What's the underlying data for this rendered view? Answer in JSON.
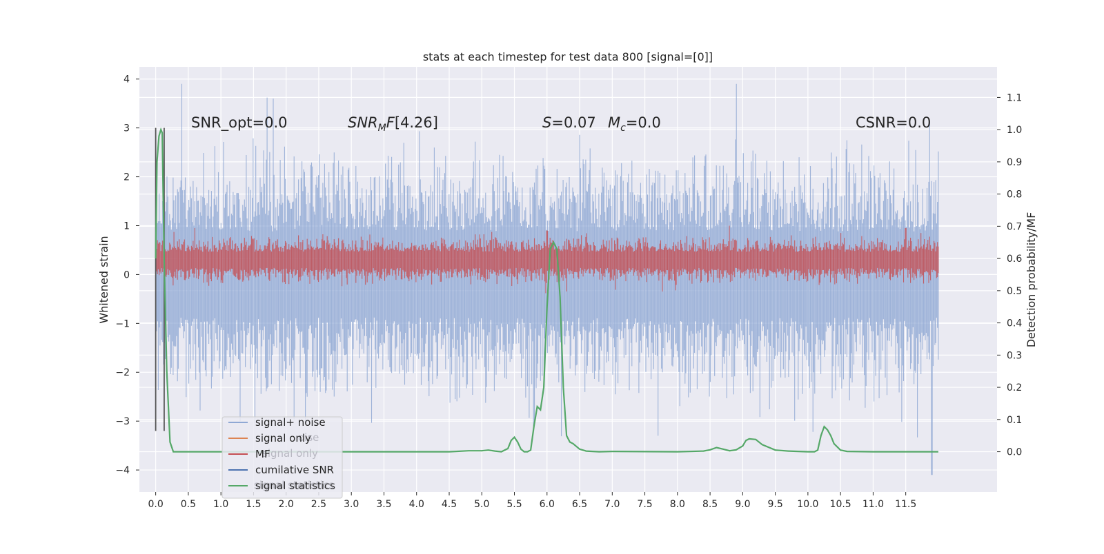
{
  "chart_data": {
    "type": "line",
    "title": "stats at each timestep for test data 800 [signal=[0]]",
    "ylabel": "Whitened strain",
    "ylabel_right": "Detection probability/MF",
    "xlabel": "",
    "xlim": [
      -0.25,
      12.9
    ],
    "ylim": [
      -4.45,
      4.25
    ],
    "ylim_right": [
      -0.125,
      1.195
    ],
    "grid": true,
    "background": "#EAEAF2",
    "x_ticks": [
      "0.0",
      "0.5",
      "1.0",
      "1.5",
      "2.0",
      "2.5",
      "3.0",
      "3.5",
      "4.0",
      "4.5",
      "5.0",
      "5.5",
      "6.0",
      "6.5",
      "7.0",
      "7.5",
      "8.0",
      "8.5",
      "9.0",
      "9.5",
      "10.0",
      "10.5",
      "11.0",
      "11.5"
    ],
    "y_ticks": [
      "4",
      "3",
      "2",
      "1",
      "0",
      "−1",
      "−2",
      "−3",
      "−4"
    ],
    "y_ticks_right": [
      "1.1",
      "1.0",
      "0.9",
      "0.8",
      "0.7",
      "0.6",
      "0.5",
      "0.4",
      "0.3",
      "0.2",
      "0.1",
      "0.0"
    ],
    "annotations": {
      "snr_opt": "SNR_opt=0.0",
      "snr_mf": "[4.26]",
      "s_mc": "=0.07",
      "mc": "=0.0",
      "csnr": "CSNR=0.0"
    },
    "legend": {
      "placement": "lower-left",
      "entries": [
        {
          "label": "signal+ noise",
          "color": "#8fa8d4"
        },
        {
          "label": "signal only",
          "color": "#dd8452"
        },
        {
          "label": "MF",
          "color": "#c44e52"
        },
        {
          "label": "cumilative SNR",
          "color": "#4c72b0"
        },
        {
          "label": "signal statistics",
          "color": "#55a868"
        }
      ],
      "ghost_entries": [
        "signal+ noise",
        "signal only",
        "signal statistics"
      ]
    },
    "series": [
      {
        "name": "signal+ noise",
        "color": "#8fa8d4",
        "kind": "noise_band",
        "x_range": [
          0.0,
          12.0
        ],
        "upper_envelope": 1.6,
        "lower_envelope": -1.6,
        "peaks": [
          [
            0.4,
            3.9
          ],
          [
            1.8,
            3.6
          ],
          [
            8.9,
            3.9
          ],
          [
            7.7,
            -3.3
          ],
          [
            11.9,
            -4.1
          ],
          [
            5.8,
            -3.1
          ],
          [
            1.3,
            -3.0
          ],
          [
            2.3,
            -3.0
          ]
        ]
      },
      {
        "name": "MF",
        "color": "#c44e52",
        "kind": "noise_band",
        "x_range": [
          0.0,
          12.0
        ],
        "upper_envelope": 0.6,
        "lower_envelope": 0.0,
        "peaks": [
          [
            0.6,
            0.95
          ],
          [
            2.8,
            0.9
          ],
          [
            6.0,
            0.9
          ],
          [
            8.8,
            1.0
          ],
          [
            10.5,
            0.85
          ],
          [
            11.5,
            0.95
          ]
        ]
      },
      {
        "name": "signal statistics",
        "color": "#55a868",
        "kind": "right_axis_line",
        "x": [
          0.0,
          0.02,
          0.05,
          0.08,
          0.1,
          0.13,
          0.17,
          0.22,
          0.27,
          0.33,
          0.5,
          1.0,
          2.0,
          3.0,
          4.0,
          4.5,
          4.8,
          5.0,
          5.1,
          5.2,
          5.3,
          5.4,
          5.45,
          5.5,
          5.55,
          5.6,
          5.65,
          5.7,
          5.75,
          5.8,
          5.85,
          5.9,
          5.95,
          6.0,
          6.05,
          6.1,
          6.15,
          6.2,
          6.25,
          6.3,
          6.35,
          6.4,
          6.5,
          6.6,
          6.8,
          7.0,
          8.0,
          8.4,
          8.5,
          8.6,
          8.7,
          8.8,
          8.9,
          9.0,
          9.05,
          9.1,
          9.2,
          9.3,
          9.5,
          9.7,
          10.0,
          10.1,
          10.15,
          10.2,
          10.25,
          10.3,
          10.35,
          10.4,
          10.5,
          10.6,
          11.0,
          11.5,
          12.0
        ],
        "y": [
          0.6,
          0.9,
          0.98,
          1.0,
          0.99,
          0.6,
          0.25,
          0.03,
          0.0,
          0.0,
          0.0,
          0.0,
          0.0,
          0.0,
          0.0,
          0.0,
          0.003,
          0.003,
          0.005,
          0.002,
          0.0,
          0.01,
          0.035,
          0.045,
          0.03,
          0.008,
          0.0,
          0.0,
          0.005,
          0.08,
          0.14,
          0.13,
          0.2,
          0.45,
          0.63,
          0.65,
          0.63,
          0.48,
          0.2,
          0.05,
          0.03,
          0.025,
          0.008,
          0.002,
          0.0,
          0.001,
          0.0,
          0.002,
          0.006,
          0.013,
          0.008,
          0.003,
          0.006,
          0.018,
          0.035,
          0.04,
          0.038,
          0.022,
          0.005,
          0.002,
          0.0,
          0.0,
          0.005,
          0.05,
          0.078,
          0.068,
          0.05,
          0.025,
          0.005,
          0.001,
          0.0,
          0.0,
          0.0
        ]
      },
      {
        "name": "markers",
        "color": "#555555",
        "kind": "vertical_lines",
        "x": [
          0.0,
          0.13
        ],
        "y_range": [
          -3.2,
          3.0
        ]
      }
    ]
  }
}
